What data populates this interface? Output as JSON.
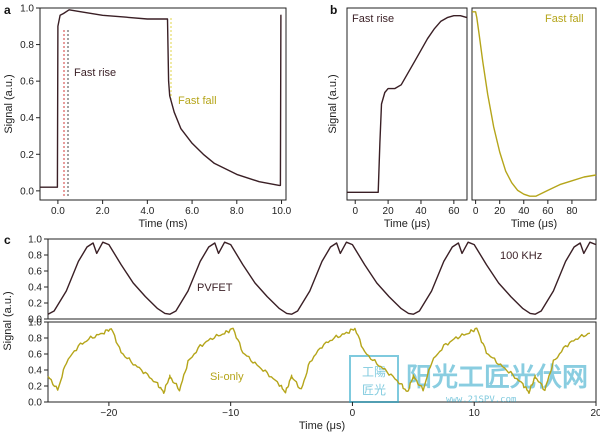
{
  "figure_labels": {
    "a": "a",
    "b": "b",
    "c": "c"
  },
  "watermark": {
    "seal_text": "工陽匠光",
    "brand_cn": "阳光工匠光伏网",
    "url": "www.21SPV.com"
  },
  "colors": {
    "dark": "#3a1f25",
    "olive": "#b5a51a",
    "red": "#d23a3a",
    "accent": "#e2d64a"
  },
  "chart_data": [
    {
      "id": "a",
      "type": "line",
      "xlabel": "Time (ms)",
      "ylabel": "Signal (a.u.)",
      "xlim": [
        -0.8,
        10.2
      ],
      "ylim": [
        -0.05,
        1.0
      ],
      "xticks": [
        "0.0",
        "2.0",
        "4.0",
        "6.0",
        "8.0",
        "10.0"
      ],
      "xtick_values": [
        0,
        2,
        4,
        6,
        8,
        10
      ],
      "yticks": [
        "0.0",
        "0.2",
        "0.4",
        "0.6",
        "0.8",
        "1.0"
      ],
      "ytick_values": [
        0,
        0.2,
        0.4,
        0.6,
        0.8,
        1.0
      ],
      "annotations": [
        {
          "text": "Fast rise",
          "x": 0.3,
          "y": 0.68,
          "color": "dark"
        },
        {
          "text": "Fast fall",
          "x": 5.3,
          "y": 0.5,
          "color": "olive"
        }
      ],
      "series": [
        {
          "color": "dark",
          "x": [
            -0.8,
            -0.3,
            -0.02,
            0.0,
            0.1,
            0.25,
            0.5,
            1.0,
            2.0,
            3.0,
            4.0,
            4.9,
            4.95,
            5.0,
            5.2,
            5.5,
            6.0,
            6.5,
            7.0,
            8.0,
            9.0,
            9.9,
            9.95,
            9.97,
            10.0
          ],
          "y": [
            0.02,
            0.02,
            0.02,
            0.9,
            0.96,
            0.97,
            0.99,
            0.98,
            0.96,
            0.95,
            0.94,
            0.94,
            0.6,
            0.52,
            0.43,
            0.34,
            0.26,
            0.2,
            0.15,
            0.09,
            0.05,
            0.03,
            0.03,
            0.96,
            0.96
          ]
        }
      ]
    },
    {
      "id": "b-rise",
      "type": "line",
      "title": "Fast rise",
      "xlabel": "Time (μs)",
      "ylabel": "Signal (a.u.)",
      "xlim": [
        -5,
        68
      ],
      "ylim": [
        0,
        1.0
      ],
      "xticks": [
        "0",
        "20",
        "40",
        "60"
      ],
      "xtick_values": [
        0,
        20,
        40,
        60
      ],
      "series": [
        {
          "color": "dark",
          "x": [
            -5,
            10,
            14,
            15,
            16,
            18,
            20,
            24,
            28,
            32,
            36,
            40,
            44,
            48,
            52,
            56,
            60,
            64,
            68
          ],
          "y": [
            0.04,
            0.04,
            0.04,
            0.3,
            0.5,
            0.56,
            0.58,
            0.58,
            0.6,
            0.66,
            0.72,
            0.78,
            0.84,
            0.89,
            0.93,
            0.95,
            0.96,
            0.96,
            0.95
          ]
        }
      ]
    },
    {
      "id": "b-fall",
      "type": "line",
      "title": "Fast fall",
      "xlabel": "Time (μs)",
      "xlim": [
        -3,
        100
      ],
      "ylim": [
        0,
        1.0
      ],
      "xticks": [
        "0",
        "20",
        "40",
        "60",
        "80"
      ],
      "xtick_values": [
        0,
        20,
        40,
        60,
        80
      ],
      "series": [
        {
          "color": "olive",
          "x": [
            -3,
            0,
            1,
            3,
            6,
            10,
            15,
            20,
            25,
            30,
            35,
            40,
            45,
            50,
            60,
            70,
            80,
            90,
            100
          ],
          "y": [
            0.98,
            0.98,
            0.95,
            0.86,
            0.72,
            0.55,
            0.38,
            0.25,
            0.15,
            0.09,
            0.05,
            0.03,
            0.02,
            0.02,
            0.05,
            0.08,
            0.1,
            0.12,
            0.13
          ]
        }
      ]
    },
    {
      "id": "c-pvfet",
      "type": "line",
      "series_label": "PVFET",
      "annotation": "100 KHz",
      "ylabel": "Signal (a.u.)",
      "xlim": [
        -25,
        20
      ],
      "ylim": [
        0,
        1.0
      ],
      "yticks": [
        "0.0",
        "0.2",
        "0.4",
        "0.6",
        "0.8",
        "1.0"
      ],
      "ytick_values": [
        0,
        0.2,
        0.4,
        0.6,
        0.8,
        1.0
      ],
      "period": 10,
      "phase": -25,
      "cycle_x": [
        0,
        0.5,
        1.5,
        2.5,
        3.2,
        3.7,
        4.0,
        4.5,
        5.0,
        6.0,
        7.0,
        8.0,
        9.0,
        9.6,
        10.0
      ],
      "cycle_y": [
        0.06,
        0.1,
        0.35,
        0.72,
        0.9,
        0.95,
        0.82,
        0.96,
        0.93,
        0.68,
        0.45,
        0.28,
        0.13,
        0.07,
        0.06
      ]
    },
    {
      "id": "c-si",
      "type": "line",
      "series_label": "Si-only",
      "xlabel": "Time (μs)",
      "xlim": [
        -25,
        20
      ],
      "ylim": [
        0,
        1.0
      ],
      "xticks": [
        "−20",
        "−10",
        "0",
        "10",
        "20"
      ],
      "xtick_values": [
        -20,
        -10,
        0,
        10,
        20
      ],
      "yticks": [
        "0.0",
        "0.2",
        "0.4",
        "0.6",
        "0.8",
        "1.0"
      ],
      "ytick_values": [
        0,
        0.2,
        0.4,
        0.6,
        0.8,
        1.0
      ],
      "period": 10,
      "phase": -25,
      "cycle_x": [
        0,
        0.8,
        1.5,
        2.5,
        3.5,
        4.5,
        5.2,
        6.0,
        7.0,
        8.0,
        9.0,
        9.5,
        10.0
      ],
      "cycle_y": [
        0.32,
        0.15,
        0.5,
        0.7,
        0.8,
        0.86,
        0.92,
        0.62,
        0.48,
        0.36,
        0.22,
        0.12,
        0.32
      ]
    }
  ]
}
